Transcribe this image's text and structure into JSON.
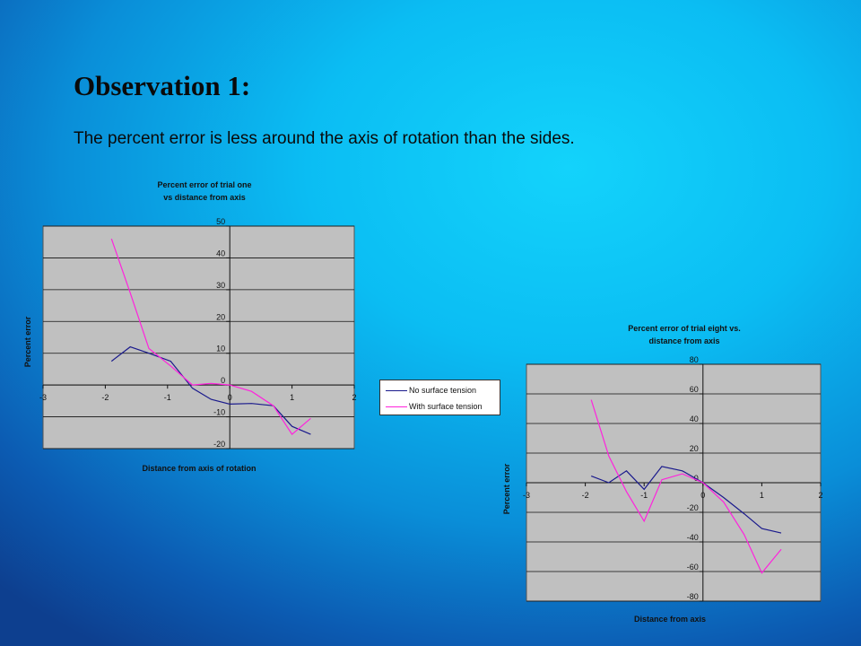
{
  "slide": {
    "title": "Observation 1:",
    "body": "The percent error is less around the axis of rotation than the sides."
  },
  "colors": {
    "no_surface_tension": "#1a1a8c",
    "with_surface_tension": "#ff22dd",
    "plot_bg": "#c0c0c0"
  },
  "chart_data": [
    {
      "type": "line",
      "title_lines": [
        "Percent error of trial one",
        "vs distance from axis"
      ],
      "xlabel": "Distance from axis of rotation",
      "ylabel": "Percent error",
      "xlim": [
        -3,
        2
      ],
      "ylim": [
        -20,
        50
      ],
      "xticks": [
        -3,
        -2,
        -1,
        0,
        1,
        2
      ],
      "xtick_labels": [
        "-3",
        "-2",
        "-1",
        "0",
        "1",
        "2"
      ],
      "yticks": [
        -20,
        -10,
        0,
        10,
        20,
        30,
        40,
        50
      ],
      "ytick_labels": [
        "-20",
        "-10",
        "0",
        "10",
        "20",
        "30",
        "40",
        "50"
      ],
      "grid": "horizontal",
      "legend": "right",
      "series": [
        {
          "name": "No surface tension",
          "x": [
            -1.9,
            -1.6,
            -1.3,
            -0.95,
            -0.6,
            -0.3,
            0,
            0.35,
            0.7,
            1.0,
            1.3
          ],
          "y": [
            7.5,
            12,
            10,
            7.5,
            -1,
            -4.5,
            -6,
            -5.8,
            -6.5,
            -13,
            -15.5
          ]
        },
        {
          "name": "With surface tension",
          "x": [
            -1.9,
            -1.6,
            -1.3,
            -0.95,
            -0.6,
            -0.3,
            0,
            0.35,
            0.7,
            1.0,
            1.3
          ],
          "y": [
            46,
            29,
            11.5,
            6,
            0,
            0.5,
            0,
            -2,
            -6.5,
            -15.5,
            -10.5
          ]
        }
      ]
    },
    {
      "type": "line",
      "title_lines": [
        "Percent error of trial eight vs.",
        "distance from axis"
      ],
      "xlabel": "Distance from axis",
      "ylabel": "Percent error",
      "xlim": [
        -3,
        2
      ],
      "ylim": [
        -80,
        80
      ],
      "xticks": [
        -3,
        -2,
        -1,
        0,
        1,
        2
      ],
      "xtick_labels": [
        "-3",
        "-2",
        "-1",
        "0",
        "1",
        "2"
      ],
      "yticks": [
        -80,
        -60,
        -40,
        -20,
        0,
        20,
        40,
        60,
        80
      ],
      "ytick_labels": [
        "-80",
        "-60",
        "-40",
        "-20",
        "0",
        "20",
        "40",
        "60",
        "80"
      ],
      "grid": "horizontal",
      "legend": "none",
      "series": [
        {
          "name": "No surface tension",
          "x": [
            -1.9,
            -1.6,
            -1.3,
            -1.0,
            -0.7,
            -0.35,
            0,
            0.35,
            0.7,
            1.0,
            1.33
          ],
          "y": [
            4.5,
            0,
            8,
            -4.5,
            11,
            8,
            0,
            -10,
            -21,
            -31,
            -34
          ]
        },
        {
          "name": "With surface tension",
          "x": [
            -1.9,
            -1.6,
            -1.3,
            -1.0,
            -0.7,
            -0.35,
            0,
            0.35,
            0.7,
            1.0,
            1.33
          ],
          "y": [
            56,
            18,
            -6,
            -26,
            2,
            6,
            0,
            -13,
            -35,
            -61,
            -45
          ]
        }
      ]
    }
  ]
}
